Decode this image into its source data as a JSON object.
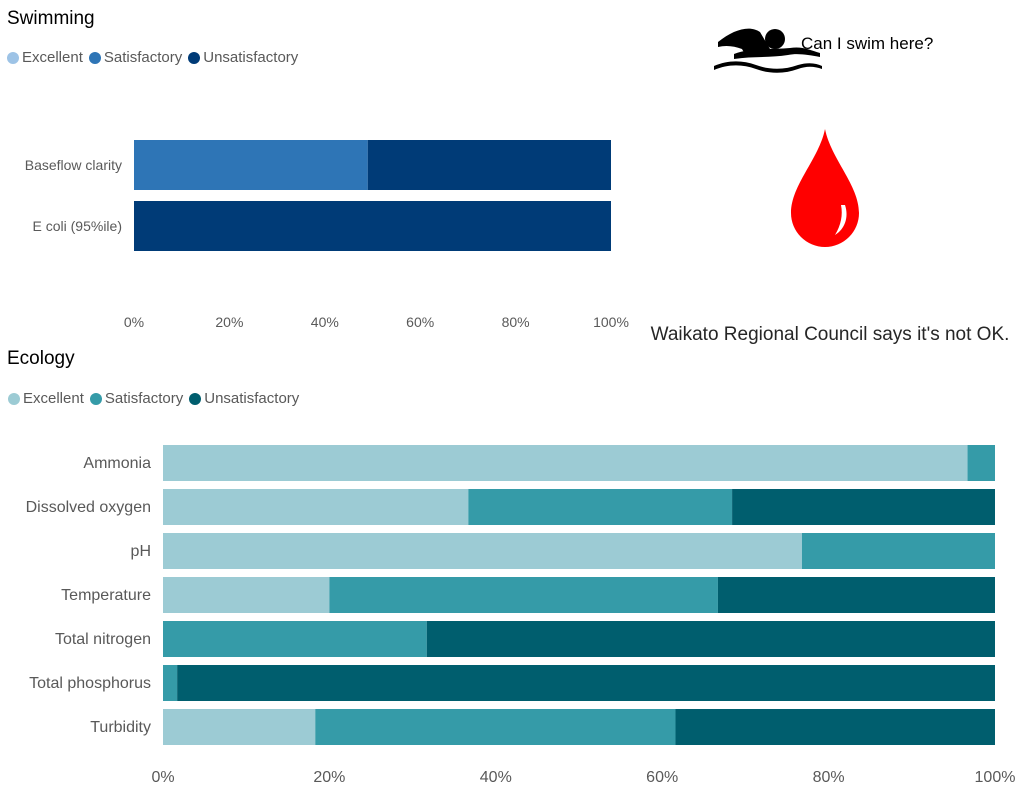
{
  "swimming": {
    "title": "Swimming",
    "legend": [
      {
        "label": "Excellent",
        "color": "#9dc3e6"
      },
      {
        "label": "Satisfactory",
        "color": "#2e75b6"
      },
      {
        "label": "Unsatisfactory",
        "color": "#003b77"
      }
    ]
  },
  "ecology": {
    "title": "Ecology",
    "legend": [
      {
        "label": "Excellent",
        "color": "#9ccbd4"
      },
      {
        "label": "Satisfactory",
        "color": "#359ba8"
      },
      {
        "label": "Unsatisfactory",
        "color": "#005e6e"
      }
    ]
  },
  "callout": {
    "label": "Can I swim here?",
    "swimmer_icon": "swimmer-icon",
    "status_icon": "red-drop-icon",
    "status_color": "#ff0000",
    "message": "Waikato Regional Council says it's not OK."
  },
  "chart_data": [
    {
      "type": "bar",
      "orientation": "horizontal",
      "stacked": true,
      "title": "Swimming",
      "categories": [
        "Baseflow clarity",
        "E coli (95%ile)"
      ],
      "series": [
        {
          "name": "Excellent",
          "color": "#9dc3e6",
          "values": [
            0,
            0
          ]
        },
        {
          "name": "Satisfactory",
          "color": "#2e75b6",
          "values": [
            49,
            0
          ]
        },
        {
          "name": "Unsatisfactory",
          "color": "#003b77",
          "values": [
            51,
            100
          ]
        }
      ],
      "xticks": [
        "0%",
        "20%",
        "40%",
        "60%",
        "80%",
        "100%"
      ],
      "xlim": [
        0,
        100
      ],
      "legend": "top-left",
      "grid": false
    },
    {
      "type": "bar",
      "orientation": "horizontal",
      "stacked": true,
      "title": "Ecology",
      "categories": [
        "Ammonia",
        "Dissolved oxygen",
        "pH",
        "Temperature",
        "Total nitrogen",
        "Total phosphorus",
        "Turbidity"
      ],
      "series": [
        {
          "name": "Excellent",
          "color": "#9ccbd4",
          "values": [
            96.7,
            36.7,
            76.8,
            20,
            0,
            0,
            18.3
          ]
        },
        {
          "name": "Satisfactory",
          "color": "#359ba8",
          "values": [
            3.3,
            31.7,
            23.2,
            46.7,
            31.7,
            1.7,
            43.3
          ]
        },
        {
          "name": "Unsatisfactory",
          "color": "#005e6e",
          "values": [
            0,
            31.6,
            0,
            33.3,
            68.3,
            98.3,
            38.4
          ]
        }
      ],
      "xticks": [
        "0%",
        "20%",
        "40%",
        "60%",
        "80%",
        "100%"
      ],
      "xlim": [
        0,
        100
      ],
      "legend": "top-left",
      "grid": false
    }
  ]
}
